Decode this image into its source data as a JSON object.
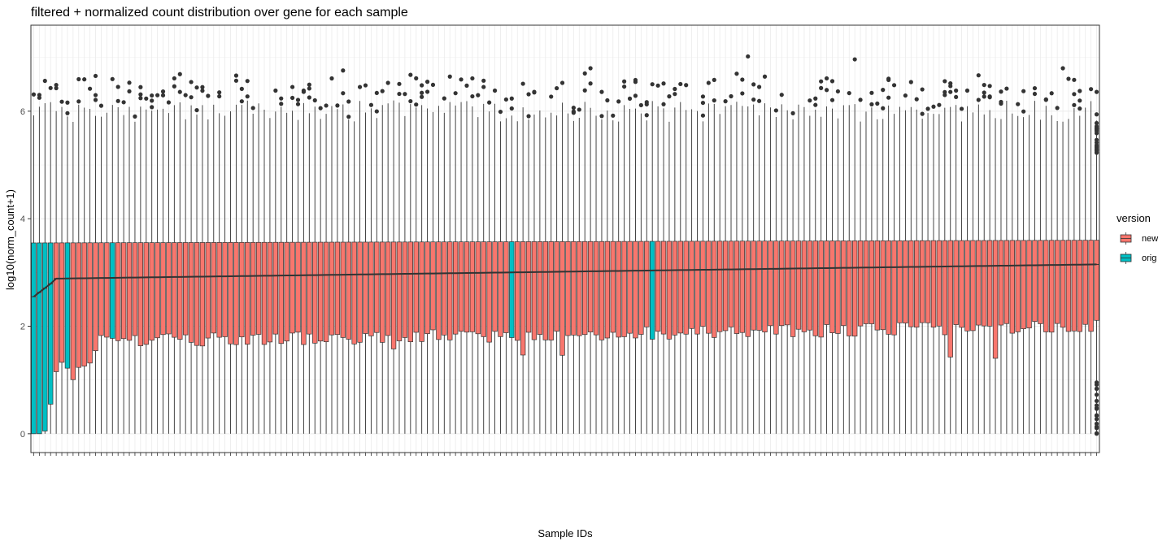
{
  "chart_data": {
    "type": "boxplot",
    "title": "filtered + normalized count distribution over gene for each sample",
    "xlabel": "Sample IDs",
    "ylabel": "log10(norm_count+1)",
    "ylim": [
      -0.35,
      7.6
    ],
    "yticks": [
      0,
      2,
      4,
      6
    ],
    "grid": true,
    "legend": {
      "title": "version",
      "position": "right",
      "entries": [
        {
          "name": "new",
          "color": "#F8766D"
        },
        {
          "name": "orig",
          "color": "#00BFC4"
        }
      ]
    },
    "n_samples": 190,
    "sample_versions": "oooonnonnnnnnnonnnnnnnnnnnnnnnnnnnnnnnnnnnnnnnnnnnnnnnnnnnnnnnnnnnnnnnnnnnnnnnnnnnnnnonnnnnnnnnnnnnnnnnnnnnnnnonnnnnnnnnnnnnnnnnnnnnnnnnnnnnnnnnnnnnnnnnnnnnnnnnnnnnnnnnnnnnnnnnnnnnnnnnnnnnnnnnnnnnnnnnnnnnnnno",
    "median_range": [
      2.55,
      3.15
    ],
    "q1_range": [
      0.0,
      2.05
    ],
    "q3_range": [
      3.55,
      3.6
    ],
    "whisker_low": 0,
    "whisker_high_range": [
      5.8,
      6.2
    ],
    "outlier_max_range": [
      6.0,
      7.2
    ],
    "median_trend_line": true
  }
}
